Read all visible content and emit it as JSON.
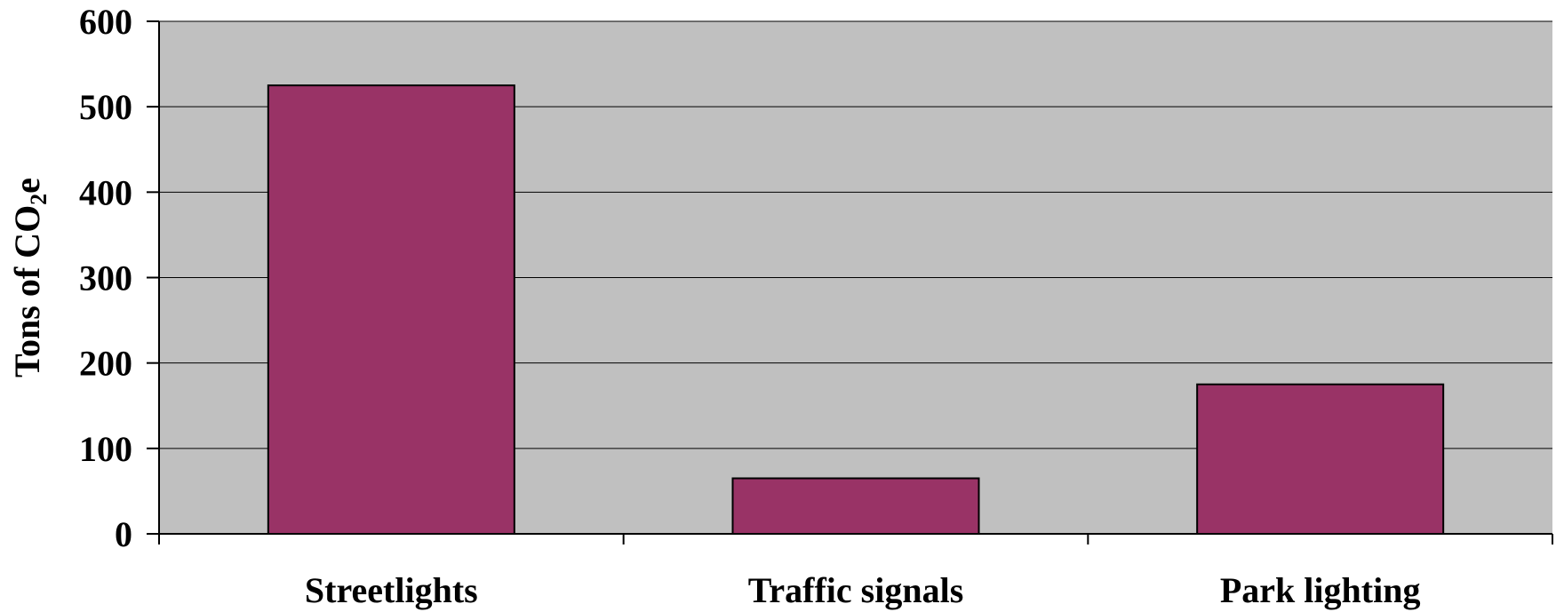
{
  "chart_data": {
    "type": "bar",
    "title": "",
    "categories": [
      "Streetlights",
      "Traffic signals",
      "Park lighting"
    ],
    "values": [
      525,
      65,
      175
    ],
    "xlabel": "",
    "ylabel": {
      "main": "Tons of CO",
      "subscript": "2",
      "suffix": "e"
    },
    "ylim": [
      0,
      600
    ],
    "yticks": [
      0,
      100,
      200,
      300,
      400,
      500,
      600
    ],
    "grid": true,
    "legend": "none",
    "colors": {
      "bar": "#993366",
      "plot_area": "#c0c0c0",
      "gridline": "#000000",
      "axis": "#000000"
    }
  }
}
